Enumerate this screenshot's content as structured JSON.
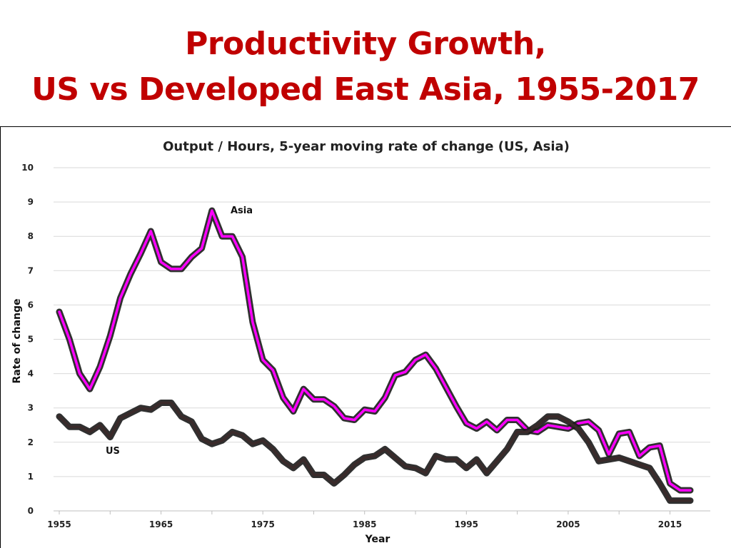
{
  "slide": {
    "title_line1": "Productivity Growth,",
    "title_line2": "US vs Developed East Asia, 1955-2017",
    "title_color": "#c00000"
  },
  "chart_data": {
    "type": "line",
    "title": "Output / Hours, 5-year moving rate of change (US, Asia)",
    "xlabel": "Year",
    "ylabel": "Rate of change",
    "xlim": [
      1955,
      2017
    ],
    "ylim": [
      0,
      10
    ],
    "xticks": [
      1955,
      1965,
      1975,
      1985,
      1995,
      2005,
      2015
    ],
    "yticks": [
      0,
      1,
      2,
      3,
      4,
      5,
      6,
      7,
      8,
      9,
      10
    ],
    "grid": true,
    "legend": "inline labels",
    "x": [
      1955,
      1956,
      1957,
      1958,
      1959,
      1960,
      1961,
      1962,
      1963,
      1964,
      1965,
      1966,
      1967,
      1968,
      1969,
      1970,
      1971,
      1972,
      1973,
      1974,
      1975,
      1976,
      1977,
      1978,
      1979,
      1980,
      1981,
      1982,
      1983,
      1984,
      1985,
      1986,
      1987,
      1988,
      1989,
      1990,
      1991,
      1992,
      1993,
      1994,
      1995,
      1996,
      1997,
      1998,
      1999,
      2000,
      2001,
      2002,
      2003,
      2004,
      2005,
      2006,
      2007,
      2008,
      2009,
      2010,
      2011,
      2012,
      2013,
      2014,
      2015,
      2016,
      2017
    ],
    "series": [
      {
        "name": "Asia",
        "label": "Asia",
        "color": "#ff00ff",
        "values": [
          5.8,
          5.0,
          4.0,
          3.55,
          4.2,
          5.1,
          6.2,
          6.9,
          7.5,
          8.15,
          7.25,
          7.05,
          7.05,
          7.4,
          7.65,
          8.75,
          8.0,
          8.0,
          7.4,
          5.5,
          4.4,
          4.1,
          3.3,
          2.9,
          3.55,
          3.25,
          3.25,
          3.05,
          2.7,
          2.65,
          2.95,
          2.9,
          3.3,
          3.95,
          4.05,
          4.4,
          4.55,
          4.15,
          3.6,
          3.05,
          2.55,
          2.4,
          2.6,
          2.35,
          2.65,
          2.65,
          2.35,
          2.3,
          2.5,
          2.45,
          2.4,
          2.55,
          2.6,
          2.35,
          1.65,
          2.25,
          2.3,
          1.6,
          1.85,
          1.9,
          0.8,
          0.6,
          0.6
        ]
      },
      {
        "name": "US",
        "label": "US",
        "color": "#3a2a2a",
        "values": [
          2.75,
          2.45,
          2.45,
          2.3,
          2.5,
          2.15,
          2.7,
          2.85,
          3.0,
          2.95,
          3.15,
          3.15,
          2.75,
          2.6,
          2.1,
          1.95,
          2.05,
          2.3,
          2.2,
          1.95,
          2.05,
          1.8,
          1.45,
          1.25,
          1.5,
          1.05,
          1.05,
          0.8,
          1.05,
          1.35,
          1.55,
          1.6,
          1.8,
          1.55,
          1.3,
          1.25,
          1.1,
          1.6,
          1.5,
          1.5,
          1.25,
          1.5,
          1.1,
          1.45,
          1.8,
          2.3,
          2.3,
          2.5,
          2.75,
          2.75,
          2.6,
          2.4,
          2.0,
          1.45,
          1.5,
          1.55,
          1.45,
          1.35,
          1.25,
          0.8,
          0.3,
          0.3,
          0.3
        ]
      }
    ]
  }
}
